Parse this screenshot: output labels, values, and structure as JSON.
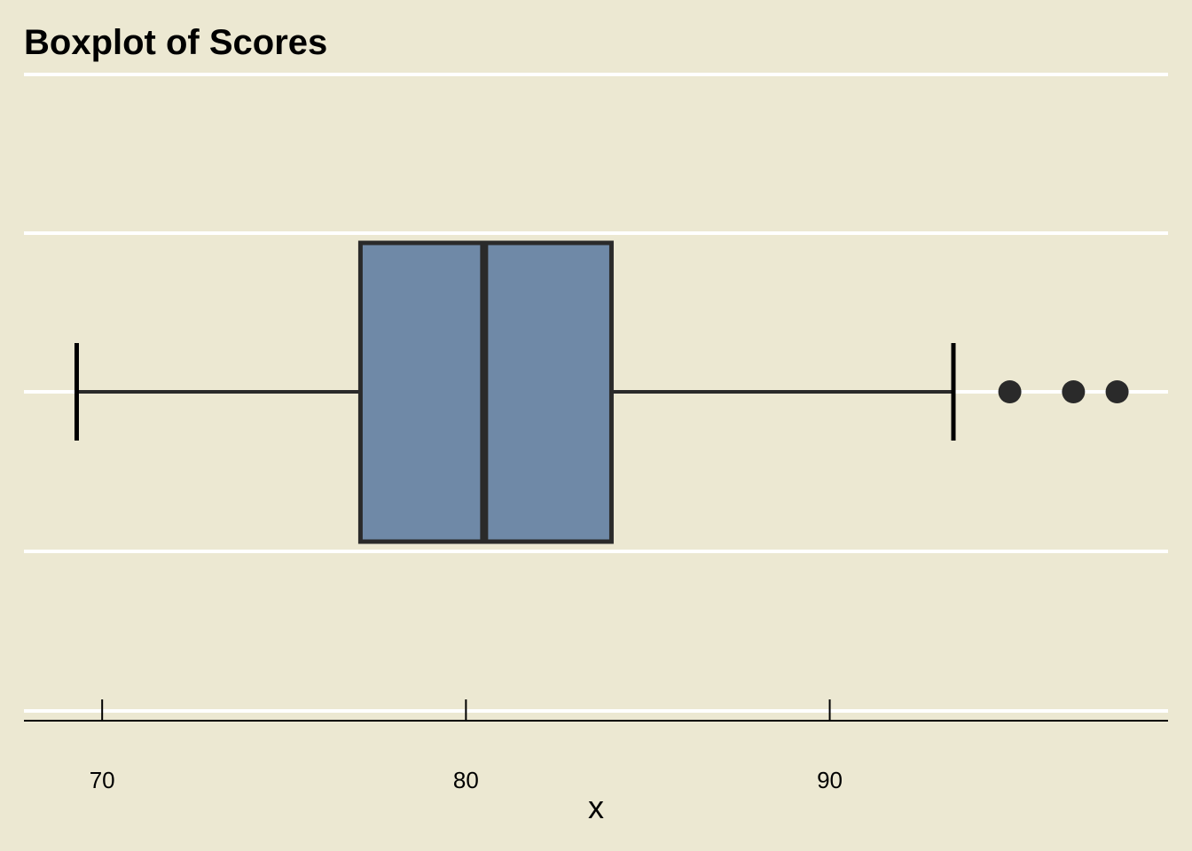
{
  "chart_data": {
    "type": "boxplot",
    "title": "Boxplot of Scores",
    "xlabel": "x",
    "ylabel": "",
    "orientation": "horizontal",
    "xlim": [
      67.85,
      99.3
    ],
    "x_ticks": [
      70,
      80,
      90
    ],
    "grid": "horizontal",
    "box": {
      "whisker_low": 69.3,
      "q1": 77.1,
      "median": 80.5,
      "q3": 84.0,
      "whisker_high": 93.4
    },
    "outliers": [
      94.95,
      96.7,
      97.9
    ],
    "colors": {
      "background": "#ECE8D2",
      "box_fill": "#6F89A7",
      "box_edge": "#2A2A2A",
      "gridline": "#FFFFFF",
      "axis": "#000000"
    }
  }
}
